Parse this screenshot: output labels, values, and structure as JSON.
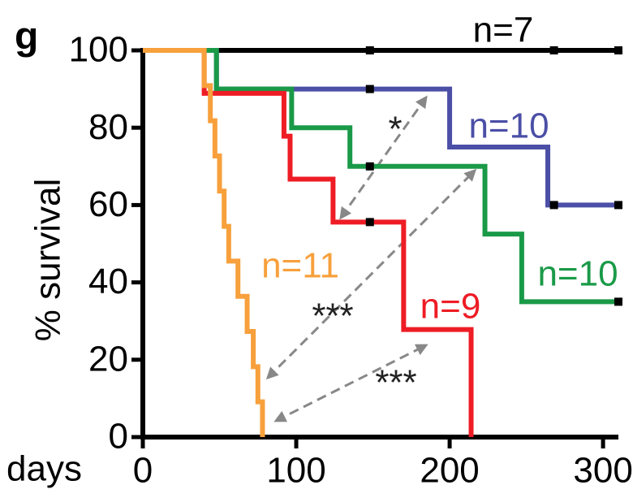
{
  "chart_data": {
    "type": "line",
    "panel_label": "g",
    "x_label": "days",
    "y_label": "% survival",
    "xlim": [
      0,
      310
    ],
    "xticks": [
      0,
      100,
      200,
      300
    ],
    "ylim": [
      0,
      100
    ],
    "yticks": [
      0,
      20,
      40,
      60,
      80,
      100
    ],
    "series": [
      {
        "label": "n=7",
        "color": "#000000",
        "x": [
          0,
          310
        ],
        "values": [
          100,
          100
        ],
        "censor_x": [
          148,
          268,
          310
        ],
        "censor_values": [
          100,
          100,
          100
        ]
      },
      {
        "label": "n=10",
        "color": "#4b4fa6",
        "x": [
          0,
          48,
          48,
          200,
          200,
          264,
          264,
          310
        ],
        "values": [
          100,
          100,
          90,
          90,
          75,
          75,
          60,
          60
        ],
        "censor_x": [
          148,
          268,
          310
        ],
        "censor_values": [
          90,
          60,
          60
        ]
      },
      {
        "label": "n=10",
        "color": "#1a9a48",
        "x": [
          0,
          48,
          48,
          97,
          97,
          135,
          135,
          223,
          223,
          247,
          247,
          310
        ],
        "values": [
          100,
          100,
          90,
          90,
          80,
          80,
          70,
          70,
          52.5,
          52.5,
          35,
          35
        ],
        "censor_x": [
          148,
          310
        ],
        "censor_values": [
          70,
          35
        ]
      },
      {
        "label": "n=9",
        "color": "#ee1c25",
        "x": [
          0,
          40,
          40,
          92,
          92,
          96,
          96,
          124,
          124,
          170,
          170,
          214,
          214
        ],
        "values": [
          100,
          100,
          88.9,
          88.9,
          77.8,
          77.8,
          66.7,
          66.7,
          55.6,
          55.6,
          27.8,
          27.8,
          0
        ],
        "censor_x": [
          148
        ],
        "censor_values": [
          55.6
        ]
      },
      {
        "label": "n=11",
        "color": "#f7a03c",
        "x": [
          0,
          40,
          40,
          44,
          44,
          47,
          47,
          50,
          50,
          53,
          53,
          56,
          56,
          62,
          62,
          68,
          68,
          72,
          72,
          75,
          75,
          78,
          78
        ],
        "values": [
          100,
          100,
          90.9,
          90.9,
          81.8,
          81.8,
          72.7,
          72.7,
          63.6,
          63.6,
          54.5,
          54.5,
          45.5,
          45.5,
          36.4,
          36.4,
          27.3,
          27.3,
          18.2,
          18.2,
          9.1,
          9.1,
          0
        ],
        "censor_x": [],
        "censor_values": []
      }
    ],
    "annotations": [
      "*",
      "***",
      "***"
    ]
  }
}
